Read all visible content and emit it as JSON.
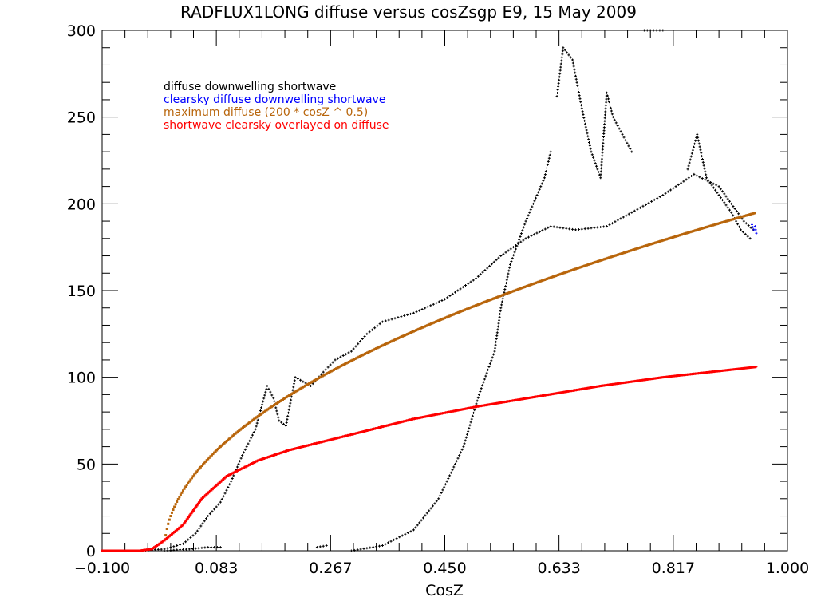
{
  "chart_data": {
    "type": "scatter",
    "title": "RADFLUX1LONG diffuse versus cosZsgp E9, 15 May 2009",
    "xlabel": "CosZ",
    "ylabel": "",
    "xlim": [
      -0.1,
      1.0
    ],
    "ylim": [
      0,
      300
    ],
    "xticks": [
      "-0.100",
      "0.083",
      "0.267",
      "0.450",
      "0.633",
      "0.817",
      "1.000"
    ],
    "xtick_values": [
      -0.1,
      0.0833,
      0.2667,
      0.45,
      0.6333,
      0.8167,
      1.0
    ],
    "yticks": [
      "0",
      "50",
      "100",
      "150",
      "200",
      "250",
      "300"
    ],
    "ytick_values": [
      0,
      50,
      100,
      150,
      200,
      250,
      300
    ],
    "legend_placement": "top-left",
    "series": [
      {
        "name": "diffuse downwelling shortwave",
        "color": "#000000",
        "segments": [
          [
            [
              -0.04,
              0
            ],
            [
              0.0,
              1
            ],
            [
              0.03,
              4
            ],
            [
              0.05,
              10
            ],
            [
              0.07,
              20
            ],
            [
              0.09,
              28
            ],
            [
              0.107,
              40
            ],
            [
              0.125,
              55
            ],
            [
              0.146,
              70
            ],
            [
              0.165,
              95
            ],
            [
              0.175,
              88
            ],
            [
              0.184,
              75
            ],
            [
              0.195,
              72
            ],
            [
              0.21,
              100
            ],
            [
              0.235,
              95
            ],
            [
              0.255,
              103
            ],
            [
              0.274,
              110
            ],
            [
              0.3,
              115
            ],
            [
              0.325,
              125
            ],
            [
              0.35,
              132
            ],
            [
              0.4,
              137
            ],
            [
              0.45,
              145
            ],
            [
              0.5,
              157
            ],
            [
              0.54,
              170
            ],
            [
              0.58,
              180
            ],
            [
              0.62,
              187
            ],
            [
              0.66,
              185
            ],
            [
              0.71,
              187
            ],
            [
              0.75,
              195
            ],
            [
              0.8,
              205
            ],
            [
              0.85,
              217
            ],
            [
              0.89,
              210
            ],
            [
              0.91,
              200
            ],
            [
              0.93,
              190
            ],
            [
              0.945,
              185
            ]
          ],
          [
            [
              0.0,
              0
            ],
            [
              0.04,
              1
            ],
            [
              0.07,
              2
            ],
            [
              0.09,
              2
            ]
          ],
          [
            [
              0.245,
              2
            ],
            [
              0.26,
              3
            ]
          ],
          [
            [
              0.3,
              0
            ],
            [
              0.35,
              3
            ],
            [
              0.4,
              12
            ],
            [
              0.44,
              30
            ],
            [
              0.48,
              60
            ],
            [
              0.505,
              90
            ],
            [
              0.53,
              115
            ],
            [
              0.54,
              140
            ],
            [
              0.555,
              165
            ],
            [
              0.58,
              190
            ],
            [
              0.61,
              215
            ],
            [
              0.62,
              230
            ]
          ],
          [
            [
              0.63,
              262
            ],
            [
              0.64,
              290
            ],
            [
              0.655,
              283
            ],
            [
              0.67,
              255
            ],
            [
              0.685,
              230
            ],
            [
              0.7,
              215
            ],
            [
              0.71,
              264
            ],
            [
              0.72,
              250
            ],
            [
              0.735,
              240
            ],
            [
              0.75,
              230
            ]
          ],
          [
            [
              0.77,
              300
            ],
            [
              0.8,
              300
            ]
          ],
          [
            [
              0.84,
              220
            ],
            [
              0.855,
              240
            ],
            [
              0.87,
              215
            ],
            [
              0.89,
              205
            ],
            [
              0.91,
              195
            ],
            [
              0.925,
              185
            ],
            [
              0.94,
              180
            ]
          ]
        ]
      },
      {
        "name": "clearsky diffuse downwelling shortwave",
        "color": "#0000ff",
        "segments": [
          [
            [
              0.943,
              188
            ],
            [
              0.946,
              185
            ],
            [
              0.95,
              183
            ],
            [
              0.948,
              187
            ]
          ]
        ]
      },
      {
        "name": "maximum diffuse (200 * cosZ ^ 0.5)",
        "color": "#b8650b",
        "function": "200*sqrt(x)",
        "x_range": [
          0.002,
          0.95
        ]
      },
      {
        "name": "shortwave clearsky overlayed on diffuse",
        "color": "#ff0000",
        "segments": [
          [
            [
              -0.1,
              0
            ],
            [
              -0.04,
              0
            ],
            [
              -0.02,
              1
            ],
            [
              0.0,
              6
            ],
            [
              0.03,
              15
            ],
            [
              0.06,
              30
            ],
            [
              0.1,
              43
            ],
            [
              0.15,
              52
            ],
            [
              0.2,
              58
            ],
            [
              0.3,
              67
            ],
            [
              0.4,
              76
            ],
            [
              0.5,
              83
            ],
            [
              0.6,
              89
            ],
            [
              0.7,
              95
            ],
            [
              0.8,
              100
            ],
            [
              0.95,
              106
            ]
          ]
        ]
      }
    ]
  }
}
